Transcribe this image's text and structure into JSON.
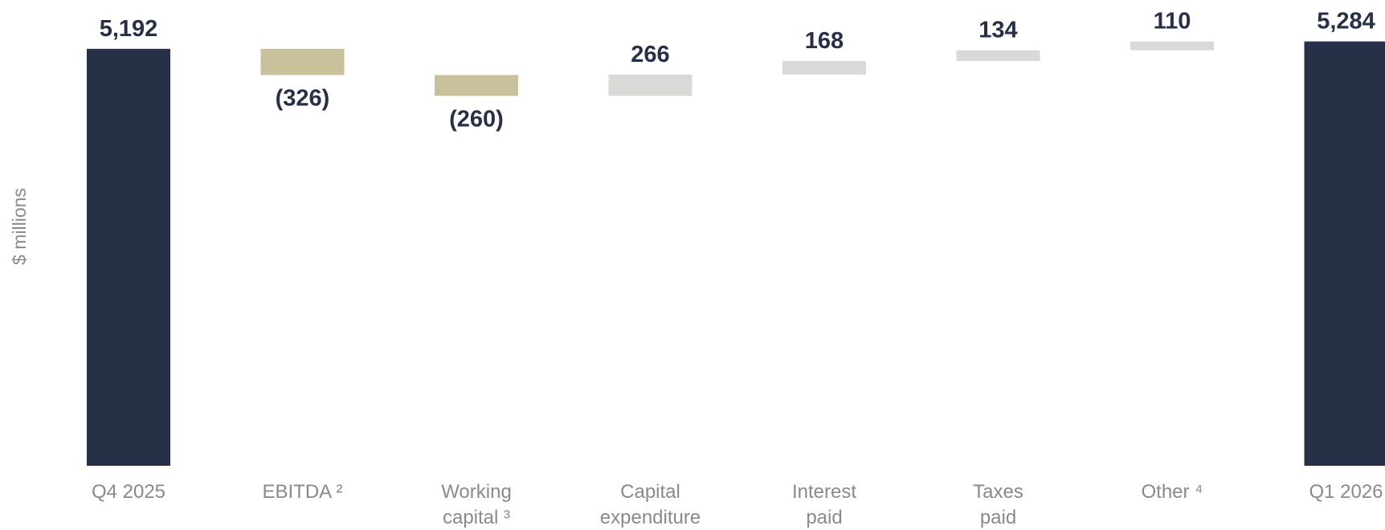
{
  "chart_data": {
    "type": "bar",
    "subtype": "waterfall",
    "ylabel": "$ millions",
    "ylim": [
      0,
      5300
    ],
    "grid": false,
    "legend": "none",
    "categories": [
      {
        "lines": [
          "Q4 2025"
        ]
      },
      {
        "lines": [
          "EBITDA ²"
        ]
      },
      {
        "lines": [
          "Working",
          "capital ³"
        ]
      },
      {
        "lines": [
          "Capital",
          "expenditure"
        ]
      },
      {
        "lines": [
          "Interest",
          "paid"
        ]
      },
      {
        "lines": [
          "Taxes",
          "paid"
        ]
      },
      {
        "lines": [
          "Other ⁴"
        ]
      },
      {
        "lines": [
          "Q1 2026"
        ]
      }
    ],
    "values": [
      5192,
      -326,
      -260,
      266,
      168,
      134,
      110,
      5284
    ],
    "value_labels": [
      "5,192",
      "(326)",
      "(260)",
      "266",
      "168",
      "134",
      "110",
      "5,284"
    ],
    "bar_kinds": [
      "total",
      "decrease",
      "decrease",
      "increase",
      "increase",
      "increase",
      "increase",
      "total"
    ],
    "colors": {
      "total": "#263047",
      "decrease": "#c9c19c",
      "increase": "#d9d9d7",
      "value_text": "#263047",
      "axis_text": "#8a8a8a"
    }
  }
}
